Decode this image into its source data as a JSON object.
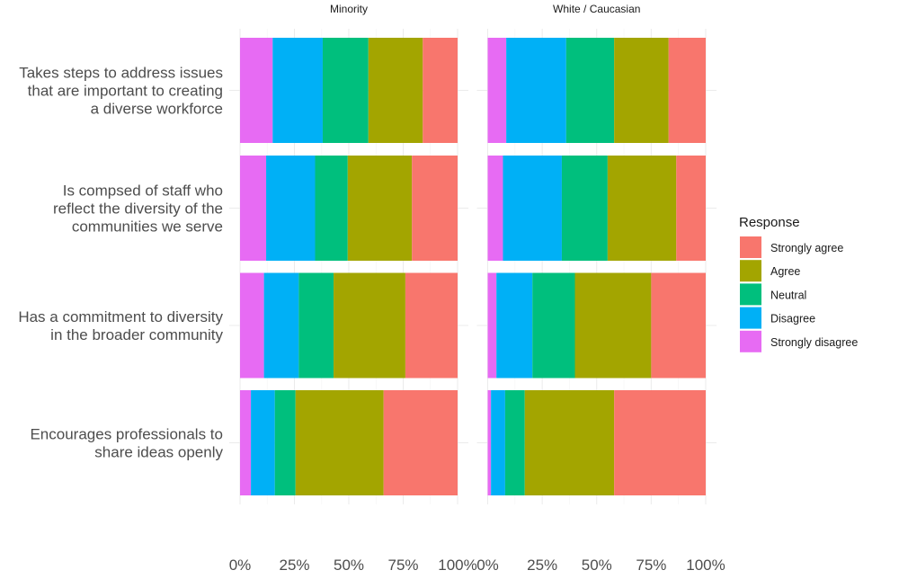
{
  "chart_data": {
    "type": "bar",
    "orientation": "horizontal",
    "stacked": true,
    "facets": [
      "Minority",
      "White / Caucasian"
    ],
    "categories": [
      "Takes steps to address issues\nthat are important to creating\na diverse workforce",
      "Is compsed of staff who\nreflect the diversity of the\ncommunities we serve",
      "Has a commitment to diversity\nin the broader community",
      "Encourages professionals to\nshare ideas openly"
    ],
    "legend": {
      "title": "Response",
      "position": "right"
    },
    "series": [
      {
        "name": "Strongly disagree",
        "color": "#E76BF3",
        "values": {
          "Minority": [
            15,
            12,
            11,
            5
          ],
          "White / Caucasian": [
            8.5,
            7,
            4,
            1.5
          ]
        }
      },
      {
        "name": "Disagree",
        "color": "#00B0F6",
        "values": {
          "Minority": [
            23,
            22.5,
            16,
            11
          ],
          "White / Caucasian": [
            27.5,
            27,
            16.5,
            6.5
          ]
        }
      },
      {
        "name": "Neutral",
        "color": "#00BF7D",
        "values": {
          "Minority": [
            21,
            15,
            16,
            9.5
          ],
          "White / Caucasian": [
            22,
            21,
            19.5,
            9
          ]
        }
      },
      {
        "name": "Agree",
        "color": "#A3A500",
        "values": {
          "Minority": [
            25,
            29.5,
            33,
            40.5
          ],
          "White / Caucasian": [
            25,
            31.5,
            35,
            41
          ]
        }
      },
      {
        "name": "Strongly agree",
        "color": "#F8766D",
        "values": {
          "Minority": [
            16,
            21,
            24,
            34
          ],
          "White / Caucasian": [
            17,
            13.5,
            25,
            42
          ]
        }
      }
    ],
    "legend_order": [
      "Strongly agree",
      "Agree",
      "Neutral",
      "Disagree",
      "Strongly disagree"
    ],
    "xlim": [
      0,
      100
    ],
    "x_ticks": [
      "0%",
      "25%",
      "50%",
      "75%",
      "100%"
    ],
    "grid": true
  }
}
